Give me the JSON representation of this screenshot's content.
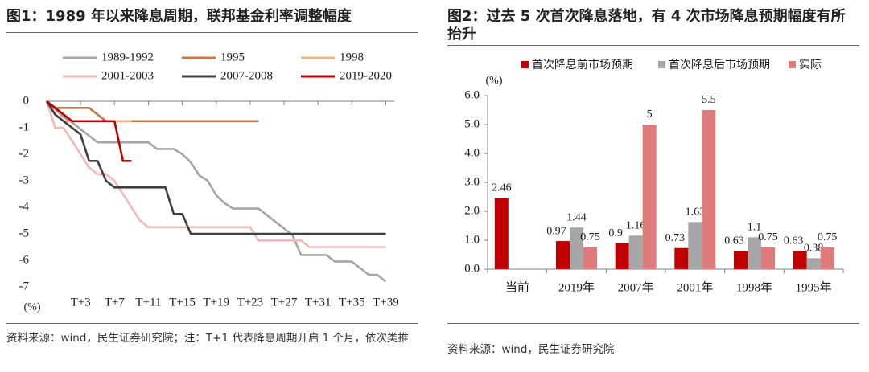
{
  "left": {
    "title": "图1：1989 年以来降息周期，联邦基金利率调整幅度",
    "source": "资料来源：wind，民生证券研究院；注：T+1 代表降息周期开启 1 个月，依次类推",
    "unit_label": "(%)"
  },
  "right": {
    "title": "图2：过去 5 次首次降息落地，有 4 次市场降息预期幅度有所抬升",
    "source": "资料来源：wind，民生证券研究院",
    "unit_label": "(%)"
  },
  "chart_data": [
    {
      "type": "line",
      "title": "1989 年以来降息周期，联邦基金利率调整幅度",
      "ylabel": "(%)",
      "ylim": [
        -7,
        0
      ],
      "yticks": [
        0,
        -1,
        -2,
        -3,
        -4,
        -5,
        -6,
        -7
      ],
      "x_range": [
        0,
        41
      ],
      "xticks": [
        {
          "label": "T+3",
          "x": 4
        },
        {
          "label": "T+7",
          "x": 8
        },
        {
          "label": "T+11",
          "x": 12
        },
        {
          "label": "T+15",
          "x": 16
        },
        {
          "label": "T+19",
          "x": 20
        },
        {
          "label": "T+23",
          "x": 24
        },
        {
          "label": "T+27",
          "x": 28
        },
        {
          "label": "T+31",
          "x": 32
        },
        {
          "label": "T+35",
          "x": 36
        },
        {
          "label": "T+39",
          "x": 40
        }
      ],
      "legend_position": "top",
      "series": [
        {
          "name": "1989-1992",
          "color": "#a6a6a6",
          "points": [
            [
              0,
              0
            ],
            [
              1,
              -0.3
            ],
            [
              2,
              -0.6
            ],
            [
              3,
              -0.8
            ],
            [
              4,
              -1.05
            ],
            [
              5,
              -1.3
            ],
            [
              6,
              -1.55
            ],
            [
              7,
              -1.55
            ],
            [
              8,
              -1.55
            ],
            [
              9,
              -1.55
            ],
            [
              10,
              -1.55
            ],
            [
              11,
              -1.55
            ],
            [
              12,
              -1.55
            ],
            [
              13,
              -1.8
            ],
            [
              14,
              -1.8
            ],
            [
              15,
              -1.8
            ],
            [
              16,
              -2.0
            ],
            [
              17,
              -2.3
            ],
            [
              18,
              -2.8
            ],
            [
              19,
              -3.0
            ],
            [
              20,
              -3.55
            ],
            [
              21,
              -3.85
            ],
            [
              22,
              -4.05
            ],
            [
              23,
              -4.05
            ],
            [
              24,
              -4.05
            ],
            [
              25,
              -4.05
            ],
            [
              26,
              -4.3
            ],
            [
              27,
              -4.55
            ],
            [
              28,
              -4.8
            ],
            [
              29,
              -5.05
            ],
            [
              30,
              -5.8
            ],
            [
              31,
              -5.8
            ],
            [
              32,
              -5.8
            ],
            [
              33,
              -5.8
            ],
            [
              34,
              -6.05
            ],
            [
              35,
              -6.05
            ],
            [
              36,
              -6.05
            ],
            [
              37,
              -6.3
            ],
            [
              38,
              -6.55
            ],
            [
              39,
              -6.55
            ],
            [
              40,
              -6.8
            ]
          ]
        },
        {
          "name": "1995",
          "color": "#c8773f",
          "points": [
            [
              0,
              0
            ],
            [
              1,
              -0.25
            ],
            [
              2,
              -0.25
            ],
            [
              3,
              -0.25
            ],
            [
              4,
              -0.25
            ],
            [
              5,
              -0.25
            ],
            [
              6,
              -0.5
            ],
            [
              7,
              -0.75
            ],
            [
              8,
              -0.75
            ],
            [
              9,
              -0.75
            ],
            [
              10,
              -0.75
            ],
            [
              11,
              -0.75
            ],
            [
              12,
              -0.75
            ],
            [
              13,
              -0.75
            ],
            [
              14,
              -0.75
            ],
            [
              15,
              -0.75
            ],
            [
              16,
              -0.75
            ],
            [
              17,
              -0.75
            ],
            [
              18,
              -0.75
            ],
            [
              19,
              -0.75
            ],
            [
              20,
              -0.75
            ],
            [
              21,
              -0.75
            ],
            [
              22,
              -0.75
            ],
            [
              23,
              -0.75
            ],
            [
              24,
              -0.75
            ],
            [
              25,
              -0.75
            ]
          ]
        },
        {
          "name": "1998",
          "color": "#f2b47c",
          "points": [
            [
              0,
              0
            ],
            [
              1,
              -0.5
            ],
            [
              2,
              -0.75
            ],
            [
              3,
              -0.75
            ],
            [
              4,
              -0.75
            ],
            [
              5,
              -0.75
            ],
            [
              6,
              -0.75
            ],
            [
              7,
              -0.75
            ],
            [
              8,
              -0.75
            ],
            [
              9,
              -0.75
            ],
            [
              10,
              -0.75
            ]
          ]
        },
        {
          "name": "2001-2003",
          "color": "#f2b9b8",
          "points": [
            [
              0,
              0
            ],
            [
              1,
              -1.0
            ],
            [
              2,
              -1.0
            ],
            [
              3,
              -1.5
            ],
            [
              4,
              -2.0
            ],
            [
              5,
              -2.5
            ],
            [
              6,
              -2.75
            ],
            [
              7,
              -2.75
            ],
            [
              8,
              -3.0
            ],
            [
              9,
              -3.5
            ],
            [
              10,
              -4.0
            ],
            [
              11,
              -4.5
            ],
            [
              12,
              -4.75
            ],
            [
              13,
              -4.75
            ],
            [
              14,
              -4.75
            ],
            [
              15,
              -4.75
            ],
            [
              16,
              -4.75
            ],
            [
              17,
              -4.75
            ],
            [
              18,
              -4.75
            ],
            [
              19,
              -4.75
            ],
            [
              20,
              -4.75
            ],
            [
              21,
              -4.75
            ],
            [
              22,
              -4.75
            ],
            [
              23,
              -4.75
            ],
            [
              24,
              -4.75
            ],
            [
              25,
              -5.25
            ],
            [
              26,
              -5.25
            ],
            [
              27,
              -5.25
            ],
            [
              28,
              -5.25
            ],
            [
              29,
              -5.25
            ],
            [
              30,
              -5.25
            ],
            [
              31,
              -5.5
            ],
            [
              32,
              -5.5
            ],
            [
              33,
              -5.5
            ],
            [
              34,
              -5.5
            ],
            [
              35,
              -5.5
            ],
            [
              36,
              -5.5
            ],
            [
              37,
              -5.5
            ],
            [
              38,
              -5.5
            ],
            [
              39,
              -5.5
            ],
            [
              40,
              -5.5
            ]
          ]
        },
        {
          "name": "2007-2008",
          "color": "#404040",
          "points": [
            [
              0,
              0
            ],
            [
              1,
              -0.5
            ],
            [
              2,
              -0.75
            ],
            [
              3,
              -1.0
            ],
            [
              4,
              -1.25
            ],
            [
              5,
              -2.25
            ],
            [
              6,
              -2.25
            ],
            [
              7,
              -3.0
            ],
            [
              8,
              -3.25
            ],
            [
              9,
              -3.25
            ],
            [
              10,
              -3.25
            ],
            [
              11,
              -3.25
            ],
            [
              12,
              -3.25
            ],
            [
              13,
              -3.25
            ],
            [
              14,
              -3.25
            ],
            [
              15,
              -4.25
            ],
            [
              16,
              -4.25
            ],
            [
              17,
              -5.0
            ],
            [
              18,
              -5.0
            ],
            [
              19,
              -5.0
            ],
            [
              20,
              -5.0
            ],
            [
              21,
              -5.0
            ],
            [
              22,
              -5.0
            ],
            [
              23,
              -5.0
            ],
            [
              24,
              -5.0
            ],
            [
              25,
              -5.0
            ],
            [
              26,
              -5.0
            ],
            [
              27,
              -5.0
            ],
            [
              28,
              -5.0
            ],
            [
              29,
              -5.0
            ],
            [
              30,
              -5.0
            ],
            [
              31,
              -5.0
            ],
            [
              32,
              -5.0
            ],
            [
              33,
              -5.0
            ],
            [
              34,
              -5.0
            ],
            [
              35,
              -5.0
            ],
            [
              36,
              -5.0
            ],
            [
              37,
              -5.0
            ],
            [
              38,
              -5.0
            ],
            [
              39,
              -5.0
            ],
            [
              40,
              -5.0
            ]
          ]
        },
        {
          "name": "2019-2020",
          "color": "#c00000",
          "points": [
            [
              0,
              0
            ],
            [
              1,
              -0.25
            ],
            [
              2,
              -0.5
            ],
            [
              3,
              -0.75
            ],
            [
              4,
              -0.75
            ],
            [
              5,
              -0.75
            ],
            [
              6,
              -0.75
            ],
            [
              7,
              -0.75
            ],
            [
              8,
              -0.75
            ],
            [
              9,
              -2.25
            ],
            [
              10,
              -2.25
            ]
          ]
        }
      ]
    },
    {
      "type": "bar",
      "title": "过去 5 次首次降息落地，有 4 次市场降息预期幅度有所抬升",
      "ylabel": "(%)",
      "ylim": [
        0,
        6
      ],
      "yticks": [
        0.0,
        1.0,
        2.0,
        3.0,
        4.0,
        5.0,
        6.0
      ],
      "categories": [
        "当前",
        "2019年",
        "2007年",
        "2001年",
        "1998年",
        "1995年"
      ],
      "legend_position": "top",
      "series": [
        {
          "name": "首次降息前市场预期",
          "color": "#c00000",
          "values": [
            2.46,
            0.97,
            0.9,
            0.73,
            0.63,
            0.63
          ]
        },
        {
          "name": "首次降息后市场预期",
          "color": "#a6a6a6",
          "values": [
            null,
            1.44,
            1.16,
            1.63,
            1.1,
            0.38
          ]
        },
        {
          "name": "实际",
          "color": "#e07b7b",
          "values": [
            null,
            0.75,
            5,
            5.5,
            0.75,
            0.75
          ]
        }
      ]
    }
  ]
}
